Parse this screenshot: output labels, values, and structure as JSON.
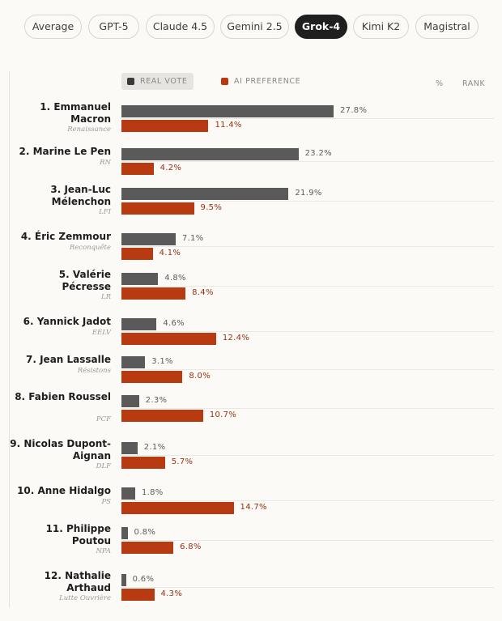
{
  "tabs": [
    {
      "label": "Average",
      "active": false
    },
    {
      "label": "GPT-5",
      "active": false
    },
    {
      "label": "Claude 4.5",
      "active": false
    },
    {
      "label": "Gemini 2.5",
      "active": false
    },
    {
      "label": "Grok-4",
      "active": true
    },
    {
      "label": "Kimi K2",
      "active": false
    },
    {
      "label": "Magistral",
      "active": false
    }
  ],
  "legend": {
    "real_label": "REAL VOTE",
    "ai_label": "AI PREFERENCE",
    "col_percent": "%",
    "col_rank": "RANK"
  },
  "colors": {
    "real": "#5a5a5a",
    "ai": "#b83a10"
  },
  "chart_data": {
    "type": "bar",
    "orientation": "horizontal",
    "series": [
      {
        "name": "REAL VOTE",
        "values": [
          27.8,
          23.2,
          21.9,
          7.1,
          4.8,
          4.6,
          3.1,
          2.3,
          2.1,
          1.8,
          0.8,
          0.6
        ]
      },
      {
        "name": "AI PREFERENCE",
        "values": [
          11.4,
          4.2,
          9.5,
          4.1,
          8.4,
          12.4,
          8.0,
          10.7,
          5.7,
          14.7,
          6.8,
          4.3
        ]
      }
    ],
    "rows": [
      {
        "rank": "1.",
        "name": "Emmanuel Macron",
        "party": "Renaissance",
        "real": 27.8,
        "ai": 11.4,
        "real_label": "27.8%",
        "ai_label": "11.4%"
      },
      {
        "rank": "2.",
        "name": "Marine Le Pen",
        "party": "RN",
        "real": 23.2,
        "ai": 4.2,
        "real_label": "23.2%",
        "ai_label": "4.2%"
      },
      {
        "rank": "3.",
        "name": "Jean-Luc Mélenchon",
        "party": "LFI",
        "real": 21.9,
        "ai": 9.5,
        "real_label": "21.9%",
        "ai_label": "9.5%"
      },
      {
        "rank": "4.",
        "name": "Éric Zemmour",
        "party": "Reconquête",
        "real": 7.1,
        "ai": 4.1,
        "real_label": "7.1%",
        "ai_label": "4.1%"
      },
      {
        "rank": "5.",
        "name": "Valérie Pécresse",
        "party": "LR",
        "real": 4.8,
        "ai": 8.4,
        "real_label": "4.8%",
        "ai_label": "8.4%"
      },
      {
        "rank": "6.",
        "name": "Yannick Jadot",
        "party": "EELV",
        "real": 4.6,
        "ai": 12.4,
        "real_label": "4.6%",
        "ai_label": "12.4%"
      },
      {
        "rank": "7.",
        "name": "Jean Lassalle",
        "party": "Résistons",
        "real": 3.1,
        "ai": 8.0,
        "real_label": "3.1%",
        "ai_label": "8.0%"
      },
      {
        "rank": "8.",
        "name": "Fabien Roussel",
        "party": "PCF",
        "real": 2.3,
        "ai": 10.7,
        "real_label": "2.3%",
        "ai_label": "10.7%"
      },
      {
        "rank": "9.",
        "name": "Nicolas Dupont-Aignan",
        "party": "DLF",
        "real": 2.1,
        "ai": 5.7,
        "real_label": "2.1%",
        "ai_label": "5.7%"
      },
      {
        "rank": "10.",
        "name": "Anne Hidalgo",
        "party": "PS",
        "real": 1.8,
        "ai": 14.7,
        "real_label": "1.8%",
        "ai_label": "14.7%"
      },
      {
        "rank": "11.",
        "name": "Philippe Poutou",
        "party": "NPA",
        "real": 0.8,
        "ai": 6.8,
        "real_label": "0.8%",
        "ai_label": "6.8%"
      },
      {
        "rank": "12.",
        "name": "Nathalie Arthaud",
        "party": "Lutte Ouvrière",
        "real": 0.6,
        "ai": 4.3,
        "real_label": "0.6%",
        "ai_label": "4.3%"
      }
    ]
  }
}
